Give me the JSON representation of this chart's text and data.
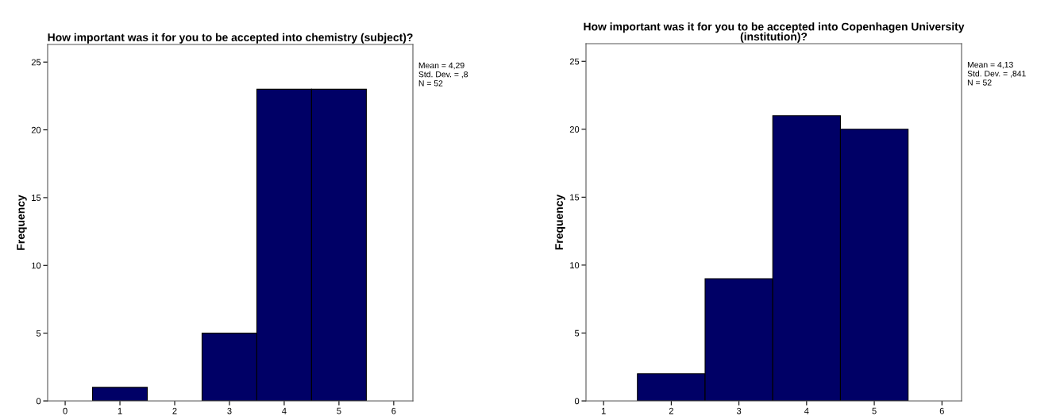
{
  "chart_data": [
    {
      "type": "histogram",
      "title": "How important was it for you to be accepted into chemistry (subject)?",
      "ylabel": "Frequency",
      "bins": [
        0.5,
        1.5,
        2.5,
        3.5,
        4.5,
        5.5
      ],
      "values": [
        1,
        0,
        5,
        23,
        23
      ],
      "color": "#000066",
      "xlim": [
        -0.32,
        6.35
      ],
      "xticks": [
        0,
        1,
        2,
        3,
        4,
        5,
        6
      ],
      "ylim": [
        0,
        26.3
      ],
      "yticks": [
        0,
        5,
        10,
        15,
        20,
        25
      ],
      "grid": false,
      "legend": false,
      "annotations": [
        "Mean = 4,29",
        "Std. Dev. = ,8",
        "N = 52"
      ]
    },
    {
      "type": "histogram",
      "title": "How important was it for you to be accepted into Copenhagen University\n(institution)?",
      "ylabel": "Frequency",
      "bins": [
        1.5,
        2.5,
        3.5,
        4.5,
        5.5
      ],
      "values": [
        2,
        9,
        21,
        20
      ],
      "color": "#000066",
      "xlim": [
        0.74,
        6.29
      ],
      "xticks": [
        1,
        2,
        3,
        4,
        5,
        6
      ],
      "ylim": [
        0,
        26.3
      ],
      "yticks": [
        0,
        5,
        10,
        15,
        20,
        25
      ],
      "grid": false,
      "legend": false,
      "annotations": [
        "Mean = 4,13",
        "Std. Dev. = ,841",
        "N = 52"
      ]
    }
  ]
}
